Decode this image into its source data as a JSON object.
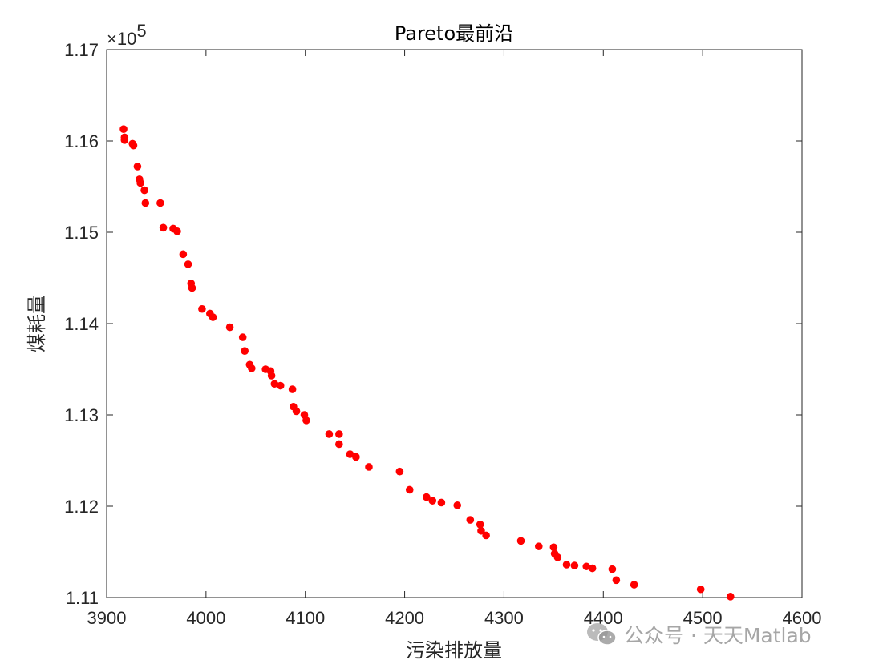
{
  "chart_data": {
    "type": "scatter",
    "title": "Pareto最前沿",
    "xlabel": "污染排放量",
    "ylabel": "煤耗量",
    "xlim": [
      3900,
      4600
    ],
    "ylim": [
      111000,
      117000
    ],
    "xticks": [
      3900,
      4000,
      4100,
      4200,
      4300,
      4400,
      4500,
      4600
    ],
    "xtick_labels": [
      "3900",
      "4000",
      "4100",
      "4200",
      "4300",
      "4400",
      "4500",
      "4600"
    ],
    "yticks": [
      111000,
      112000,
      113000,
      114000,
      115000,
      116000,
      117000
    ],
    "ytick_labels": [
      "1.11",
      "1.12",
      "1.13",
      "1.14",
      "1.15",
      "1.16",
      "1.17"
    ],
    "y_exponent_label": "×10",
    "y_exponent_power": "5",
    "marker_color": "#ff0000",
    "grid": false,
    "points": [
      [
        3917,
        116130
      ],
      [
        3918,
        116040
      ],
      [
        3918,
        116010
      ],
      [
        3926,
        115970
      ],
      [
        3927,
        115950
      ],
      [
        3931,
        115720
      ],
      [
        3933,
        115580
      ],
      [
        3934,
        115540
      ],
      [
        3938,
        115460
      ],
      [
        3939,
        115320
      ],
      [
        3954,
        115320
      ],
      [
        3957,
        115050
      ],
      [
        3967,
        115040
      ],
      [
        3971,
        115010
      ],
      [
        3977,
        114760
      ],
      [
        3982,
        114650
      ],
      [
        3985,
        114440
      ],
      [
        3986,
        114390
      ],
      [
        3996,
        114160
      ],
      [
        4004,
        114110
      ],
      [
        4007,
        114070
      ],
      [
        4024,
        113960
      ],
      [
        4037,
        113850
      ],
      [
        4039,
        113700
      ],
      [
        4044,
        113550
      ],
      [
        4046,
        113510
      ],
      [
        4060,
        113500
      ],
      [
        4065,
        113480
      ],
      [
        4066,
        113430
      ],
      [
        4069,
        113340
      ],
      [
        4075,
        113320
      ],
      [
        4087,
        113280
      ],
      [
        4088,
        113090
      ],
      [
        4091,
        113040
      ],
      [
        4099,
        113000
      ],
      [
        4101,
        112940
      ],
      [
        4124,
        112790
      ],
      [
        4134,
        112790
      ],
      [
        4134,
        112680
      ],
      [
        4145,
        112570
      ],
      [
        4151,
        112540
      ],
      [
        4164,
        112430
      ],
      [
        4195,
        112380
      ],
      [
        4205,
        112180
      ],
      [
        4222,
        112100
      ],
      [
        4228,
        112060
      ],
      [
        4237,
        112040
      ],
      [
        4253,
        112010
      ],
      [
        4266,
        111850
      ],
      [
        4276,
        111800
      ],
      [
        4277,
        111730
      ],
      [
        4282,
        111680
      ],
      [
        4317,
        111620
      ],
      [
        4335,
        111560
      ],
      [
        4350,
        111550
      ],
      [
        4351,
        111480
      ],
      [
        4354,
        111440
      ],
      [
        4363,
        111360
      ],
      [
        4371,
        111350
      ],
      [
        4383,
        111340
      ],
      [
        4389,
        111320
      ],
      [
        4409,
        111310
      ],
      [
        4413,
        111190
      ],
      [
        4431,
        111140
      ],
      [
        4498,
        111090
      ],
      [
        4528,
        111010
      ]
    ]
  },
  "watermark": {
    "text": "公众号 · 天天Matlab",
    "icon": "wechat-icon"
  }
}
